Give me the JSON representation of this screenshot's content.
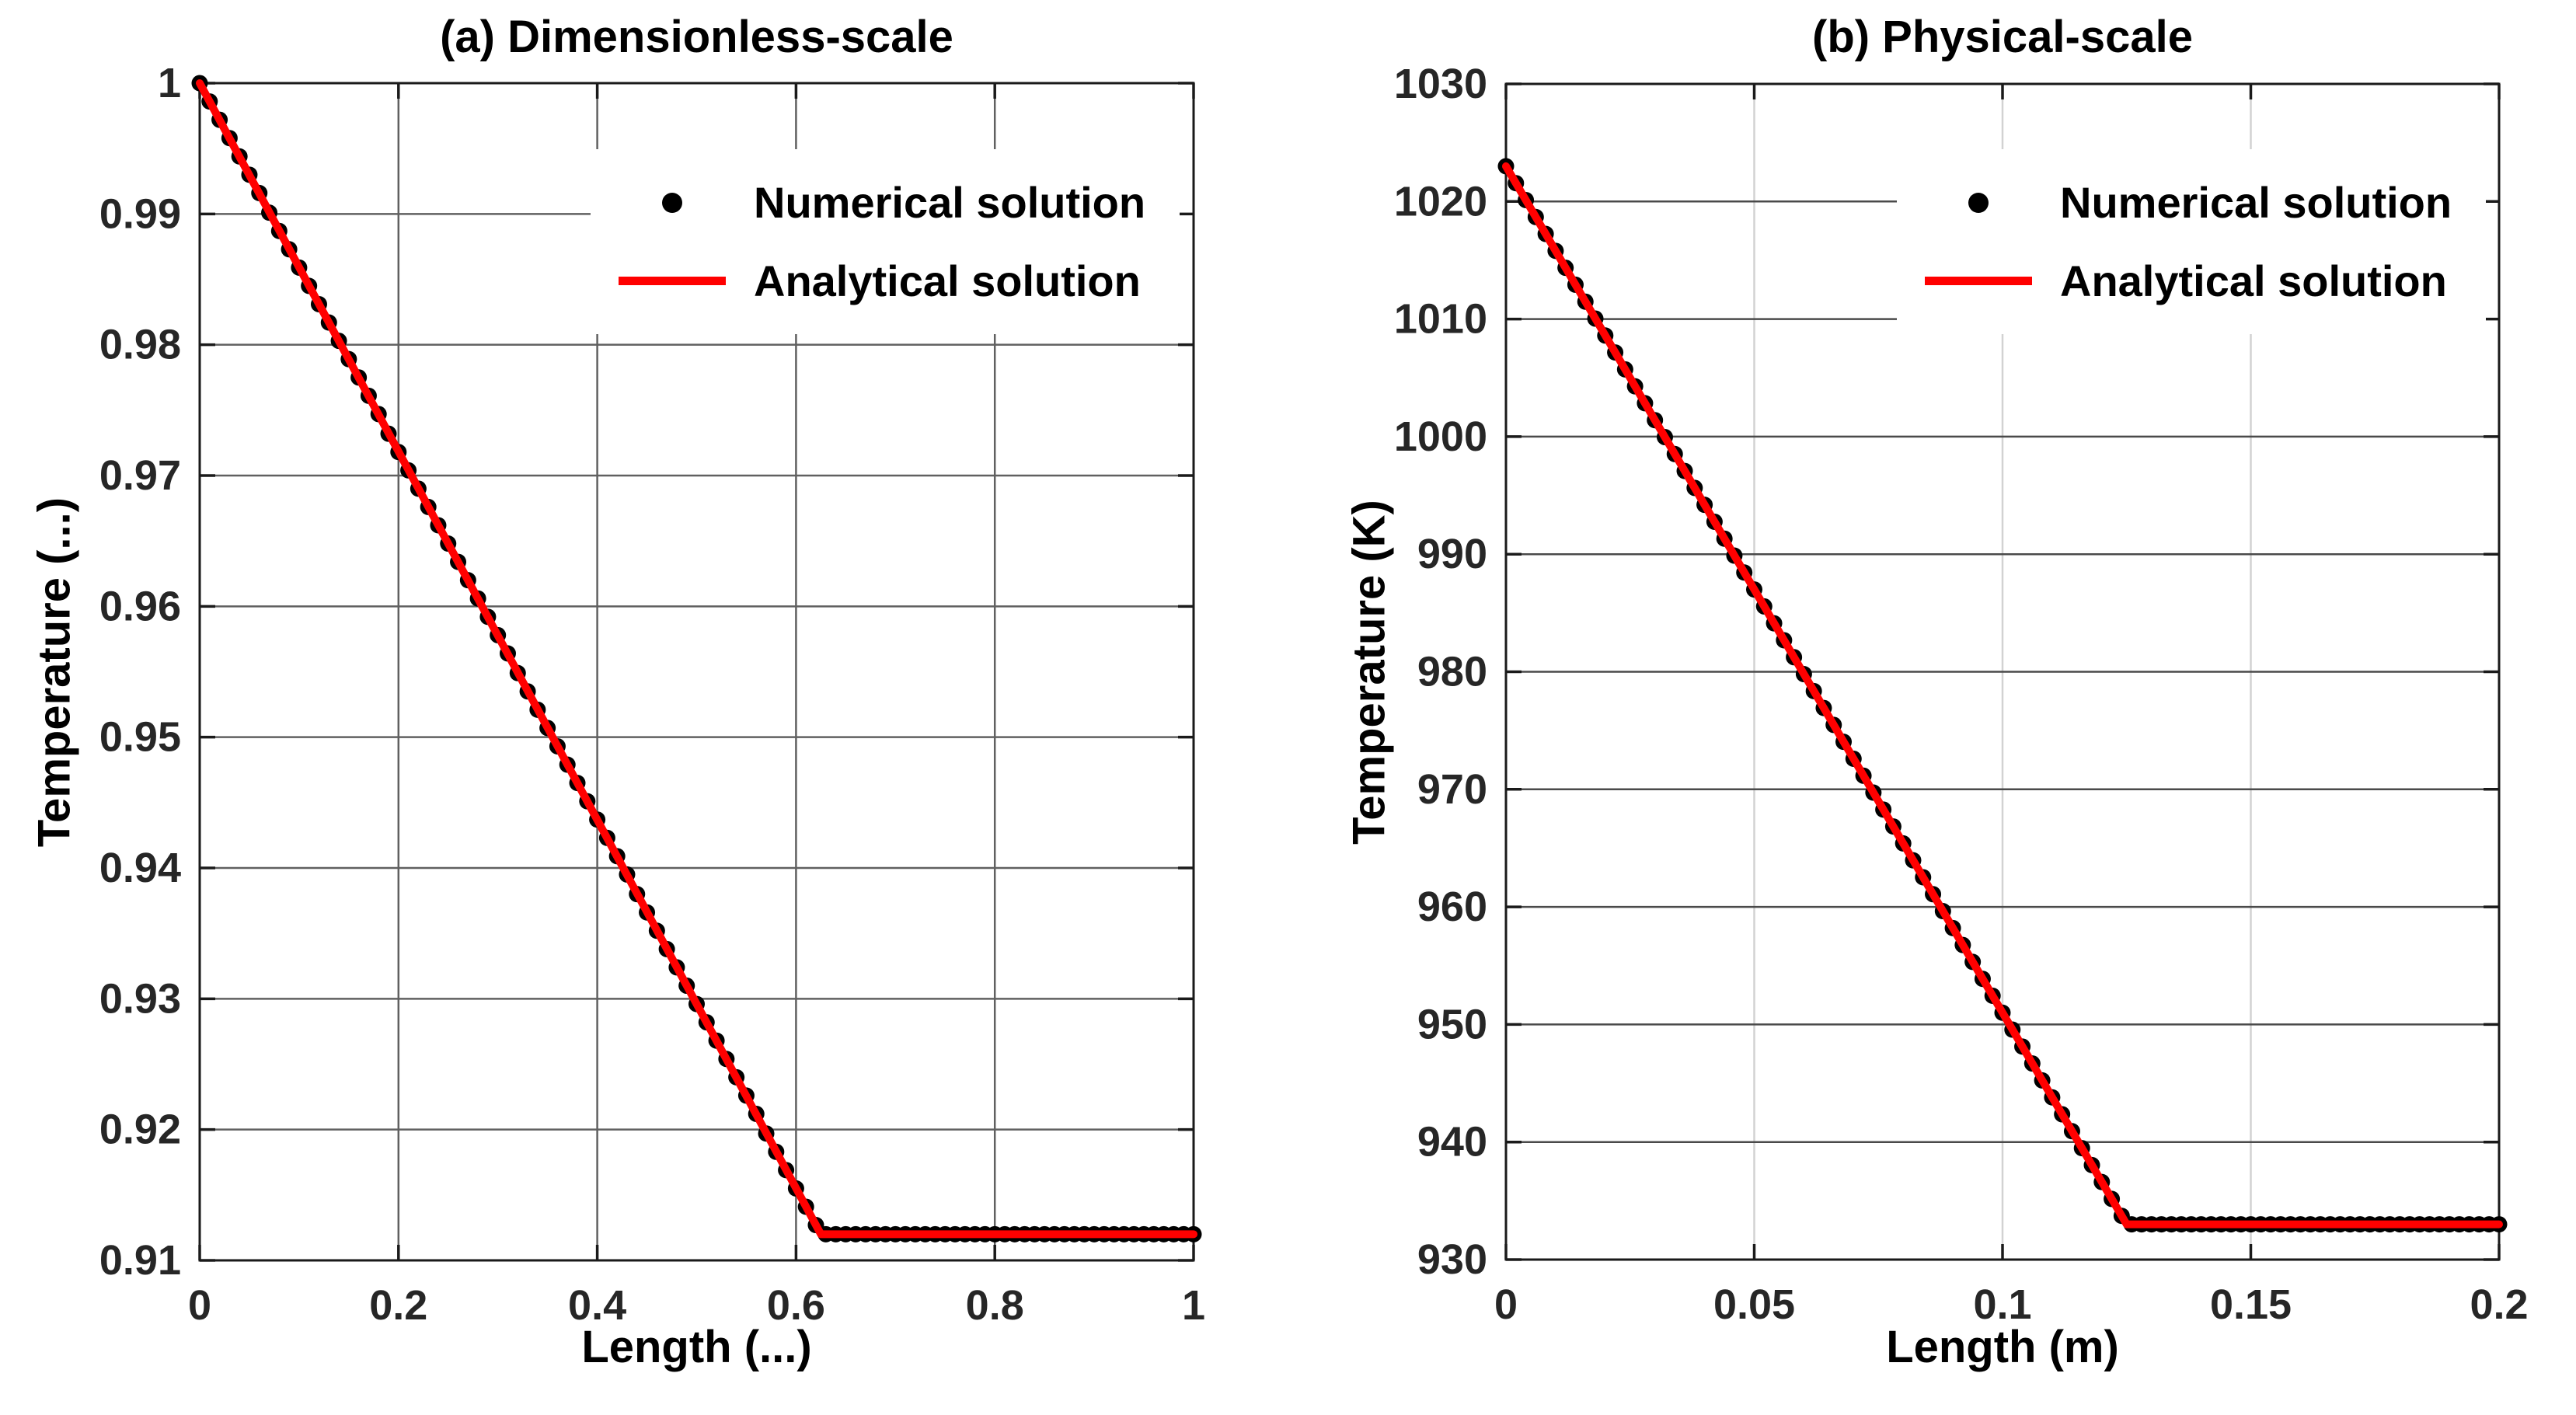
{
  "figure": {
    "background": "#ffffff"
  },
  "chart_data": [
    {
      "type": "scatter+line",
      "title": "(a) Dimensionless-scale",
      "xlabel": "Length (...)",
      "ylabel": "Temperature (...)",
      "xlim": [
        0,
        1
      ],
      "ylim": [
        0.91,
        1
      ],
      "xticks": [
        0,
        0.2,
        0.4,
        0.6,
        0.8,
        1
      ],
      "xtick_labels": [
        "0",
        "0.2",
        "0.4",
        "0.6",
        "0.8",
        "1"
      ],
      "yticks": [
        0.91,
        0.92,
        0.93,
        0.94,
        0.95,
        0.96,
        0.97,
        0.98,
        0.99,
        1
      ],
      "ytick_labels": [
        "0.91",
        "0.92",
        "0.93",
        "0.94",
        "0.95",
        "0.96",
        "0.97",
        "0.98",
        "0.99",
        "1"
      ],
      "grid": "on",
      "legend_position": "upper-right-inside",
      "colors": {
        "axis": "#1a1a1a",
        "tick_label": "#262626",
        "grid_h": "#606060",
        "grid_v": "#606060"
      },
      "series": [
        {
          "name": "Numerical solution",
          "type": "scatter",
          "color": "#000000",
          "marker": "dot",
          "x": [
            0,
            0.01,
            0.02,
            0.03,
            0.04,
            0.05,
            0.06,
            0.07,
            0.08,
            0.09,
            0.1,
            0.11,
            0.12,
            0.13,
            0.14,
            0.15,
            0.16,
            0.17,
            0.18,
            0.19,
            0.2,
            0.21,
            0.22,
            0.23,
            0.24,
            0.25,
            0.26,
            0.27,
            0.28,
            0.29,
            0.3,
            0.31,
            0.32,
            0.33,
            0.34,
            0.35,
            0.36,
            0.37,
            0.38,
            0.39,
            0.4,
            0.41,
            0.42,
            0.43,
            0.44,
            0.45,
            0.46,
            0.47,
            0.48,
            0.49,
            0.5,
            0.51,
            0.52,
            0.53,
            0.54,
            0.55,
            0.56,
            0.57,
            0.58,
            0.59,
            0.6,
            0.61,
            0.62,
            0.63,
            0.64,
            0.65,
            0.66,
            0.67,
            0.68,
            0.69,
            0.7,
            0.71,
            0.72,
            0.73,
            0.74,
            0.75,
            0.76,
            0.77,
            0.78,
            0.79,
            0.8,
            0.81,
            0.82,
            0.83,
            0.84,
            0.85,
            0.86,
            0.87,
            0.88,
            0.89,
            0.9,
            0.91,
            0.92,
            0.93,
            0.94,
            0.95,
            0.96,
            0.97,
            0.98,
            0.99,
            1
          ],
          "y": [
            1,
            0.9986,
            0.9972,
            0.9958,
            0.9944,
            0.993,
            0.9916,
            0.9901,
            0.9887,
            0.9873,
            0.9859,
            0.9845,
            0.9831,
            0.9817,
            0.9803,
            0.9789,
            0.9775,
            0.9761,
            0.9747,
            0.9732,
            0.9718,
            0.9704,
            0.969,
            0.9676,
            0.9662,
            0.9648,
            0.9634,
            0.962,
            0.9606,
            0.9592,
            0.9578,
            0.9564,
            0.9549,
            0.9535,
            0.9521,
            0.9507,
            0.9493,
            0.9479,
            0.9465,
            0.9451,
            0.9437,
            0.9423,
            0.9409,
            0.9395,
            0.938,
            0.9366,
            0.9352,
            0.9338,
            0.9324,
            0.931,
            0.9296,
            0.9282,
            0.9268,
            0.9254,
            0.924,
            0.9226,
            0.9212,
            0.9197,
            0.9183,
            0.9169,
            0.9155,
            0.9141,
            0.9127,
            0.912,
            0.912,
            0.912,
            0.912,
            0.912,
            0.912,
            0.912,
            0.912,
            0.912,
            0.912,
            0.912,
            0.912,
            0.912,
            0.912,
            0.912,
            0.912,
            0.912,
            0.912,
            0.912,
            0.912,
            0.912,
            0.912,
            0.912,
            0.912,
            0.912,
            0.912,
            0.912,
            0.912,
            0.912,
            0.912,
            0.912,
            0.912,
            0.912,
            0.912,
            0.912,
            0.912,
            0.912,
            0.912
          ]
        },
        {
          "name": "Analytical solution",
          "type": "line",
          "color": "#ff0000",
          "x": [
            0,
            0.625,
            1
          ],
          "y": [
            1,
            0.912,
            0.912
          ]
        }
      ]
    },
    {
      "type": "scatter+line",
      "title": "(b) Physical-scale",
      "xlabel": "Length (m)",
      "ylabel": "Temperature (K)",
      "xlim": [
        0,
        0.2
      ],
      "ylim": [
        930,
        1030
      ],
      "xticks": [
        0,
        0.05,
        0.1,
        0.15,
        0.2
      ],
      "xtick_labels": [
        "0",
        "0.05",
        "0.1",
        "0.15",
        "0.2"
      ],
      "yticks": [
        930,
        940,
        950,
        960,
        970,
        980,
        990,
        1000,
        1010,
        1020,
        1030
      ],
      "ytick_labels": [
        "930",
        "940",
        "950",
        "960",
        "970",
        "980",
        "990",
        "1000",
        "1010",
        "1020",
        "1030"
      ],
      "grid": "on",
      "legend_position": "upper-right-inside",
      "colors": {
        "axis": "#1a1a1a",
        "tick_label": "#262626",
        "grid_h": "#4a4a4a",
        "grid_v": "#d2d2d2"
      },
      "series": [
        {
          "name": "Numerical solution",
          "type": "scatter",
          "color": "#000000",
          "marker": "dot",
          "x": [
            0,
            0.002,
            0.004,
            0.006,
            0.008,
            0.01,
            0.012,
            0.014,
            0.016,
            0.018,
            0.02,
            0.022,
            0.024,
            0.026,
            0.028,
            0.03,
            0.032,
            0.034,
            0.036,
            0.038,
            0.04,
            0.042,
            0.044,
            0.046,
            0.048,
            0.05,
            0.052,
            0.054,
            0.056,
            0.058,
            0.06,
            0.062,
            0.064,
            0.066,
            0.068,
            0.07,
            0.072,
            0.074,
            0.076,
            0.078,
            0.08,
            0.082,
            0.084,
            0.086,
            0.088,
            0.09,
            0.092,
            0.094,
            0.096,
            0.098,
            0.1,
            0.102,
            0.104,
            0.106,
            0.108,
            0.11,
            0.112,
            0.114,
            0.116,
            0.118,
            0.12,
            0.122,
            0.124,
            0.126,
            0.128,
            0.13,
            0.132,
            0.134,
            0.136,
            0.138,
            0.14,
            0.142,
            0.144,
            0.146,
            0.148,
            0.15,
            0.152,
            0.154,
            0.156,
            0.158,
            0.16,
            0.162,
            0.164,
            0.166,
            0.168,
            0.17,
            0.172,
            0.174,
            0.176,
            0.178,
            0.18,
            0.182,
            0.184,
            0.186,
            0.188,
            0.19,
            0.192,
            0.194,
            0.196,
            0.198,
            0.2
          ],
          "y": [
            1023,
            1021.56,
            1020.12,
            1018.68,
            1017.24,
            1015.8,
            1014.36,
            1012.92,
            1011.48,
            1010.04,
            1008.6,
            1007.16,
            1005.72,
            1004.28,
            1002.84,
            1001.4,
            999.96,
            998.52,
            997.08,
            995.64,
            994.2,
            992.76,
            991.32,
            989.88,
            988.44,
            987,
            985.56,
            984.12,
            982.68,
            981.24,
            979.8,
            978.36,
            976.92,
            975.48,
            974.04,
            972.6,
            971.16,
            969.72,
            968.28,
            966.84,
            965.4,
            963.96,
            962.52,
            961.08,
            959.64,
            958.2,
            956.76,
            955.32,
            953.88,
            952.44,
            951,
            949.56,
            948.12,
            946.68,
            945.24,
            943.8,
            942.36,
            940.92,
            939.48,
            938.04,
            936.6,
            935.16,
            933.72,
            933,
            933,
            933,
            933,
            933,
            933,
            933,
            933,
            933,
            933,
            933,
            933,
            933,
            933,
            933,
            933,
            933,
            933,
            933,
            933,
            933,
            933,
            933,
            933,
            933,
            933,
            933,
            933,
            933,
            933,
            933,
            933,
            933,
            933,
            933,
            933,
            933,
            933
          ]
        },
        {
          "name": "Analytical solution",
          "type": "line",
          "color": "#ff0000",
          "x": [
            0,
            0.125,
            0.2
          ],
          "y": [
            1023,
            933,
            933
          ]
        }
      ]
    }
  ]
}
